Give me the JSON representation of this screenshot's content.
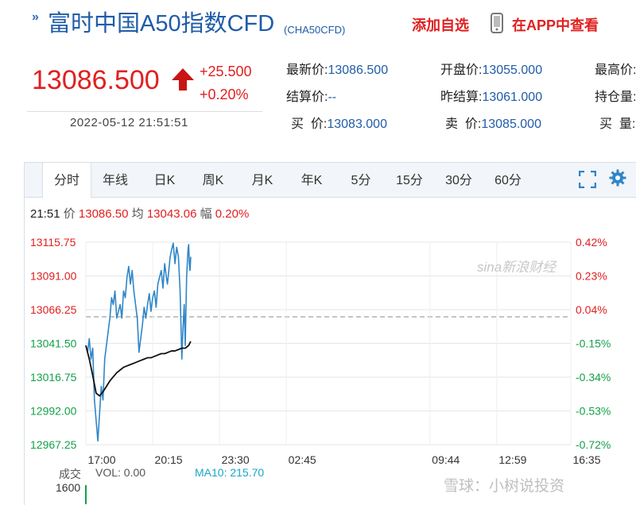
{
  "header": {
    "chevron": "»",
    "title": "富时中国A50指数CFD",
    "code": "(CHA50CFD)",
    "add_favorite": "添加自选",
    "view_in_app": "在APP中查看"
  },
  "quote": {
    "price": "13086.500",
    "change": "+25.500",
    "change_pct": "+0.20%",
    "timestamp": "2022-05-12 21:51:51",
    "rows": [
      [
        {
          "label": "最新价:",
          "value": "13086.500"
        },
        {
          "label": "开盘价:",
          "value": "13055.000"
        },
        {
          "label": "最高价:",
          "value": ""
        }
      ],
      [
        {
          "label": "结算价:",
          "value": "--"
        },
        {
          "label": "昨结算:",
          "value": "13061.000"
        },
        {
          "label": "持仓量:",
          "value": ""
        }
      ],
      [
        {
          "label": "买  价:",
          "value": "13083.000"
        },
        {
          "label": "卖  价:",
          "value": "13085.000"
        },
        {
          "label": "买  量:",
          "value": ""
        }
      ]
    ]
  },
  "tabs": [
    {
      "label": "分时",
      "active": true
    },
    {
      "label": "年线",
      "active": false
    },
    {
      "label": "日K",
      "active": false
    },
    {
      "label": "周K",
      "active": false
    },
    {
      "label": "月K",
      "active": false
    },
    {
      "label": "年K",
      "active": false
    },
    {
      "label": "5分",
      "active": false
    },
    {
      "label": "15分",
      "active": false
    },
    {
      "label": "30分",
      "active": false
    },
    {
      "label": "60分",
      "active": false
    }
  ],
  "toolbar_icons": [
    "fullscreen-icon",
    "settings-icon"
  ],
  "info": {
    "time": "21:51",
    "price_label": "价",
    "price": "13086.50",
    "avg_label": "均",
    "avg": "13043.06",
    "pct_label": "幅",
    "pct": "0.20%"
  },
  "watermark": "sina新浪财经",
  "bottom_watermark": "雪球：小树说投资",
  "volume": {
    "label": "成交",
    "vol_text": "VOL: 0.00",
    "ma10_text": "MA10: 215.70",
    "max_label": "1600"
  },
  "colors": {
    "up": "#e02020",
    "down": "#15a04a",
    "link": "#1f5ca8",
    "price_line": "#2f86c8",
    "avg_line": "#111111",
    "ma10": "#1aa6c8"
  },
  "chart_data": {
    "type": "line",
    "title": "",
    "y_left_ticks": [
      "13115.75",
      "13091.00",
      "13066.25",
      "13041.50",
      "13016.75",
      "12992.00",
      "12967.25"
    ],
    "y_left_values": [
      13115.75,
      13091.0,
      13066.25,
      13041.5,
      13016.75,
      12992.0,
      12967.25
    ],
    "y_right_ticks": [
      "0.42%",
      "0.23%",
      "0.04%",
      "-0.15%",
      "-0.34%",
      "-0.53%",
      "-0.72%"
    ],
    "x_ticks": [
      "17:00",
      "20:15",
      "23:30",
      "02:45",
      "09:44",
      "12:59",
      "16:35"
    ],
    "x_tick_minutes": [
      0,
      195,
      390,
      585,
      1004,
      1199,
      1415
    ],
    "ylim": [
      12967.25,
      13115.75
    ],
    "xlim_minutes": [
      0,
      1415
    ],
    "reference": 13061.0,
    "grid": true,
    "series": [
      {
        "color_key": "price_line",
        "x_minutes": [
          0,
          5,
          10,
          15,
          20,
          25,
          30,
          35,
          40,
          45,
          50,
          55,
          60,
          65,
          70,
          75,
          80,
          85,
          90,
          95,
          100,
          105,
          110,
          115,
          120,
          125,
          130,
          135,
          140,
          145,
          150,
          155,
          160,
          165,
          170,
          175,
          180,
          185,
          190,
          195,
          200,
          205,
          210,
          215,
          220,
          225,
          230,
          235,
          238,
          242,
          246,
          250,
          255,
          260,
          265,
          270,
          275,
          280,
          283,
          287,
          290,
          292,
          294,
          296,
          298,
          300,
          302,
          304,
          306
        ],
        "values": [
          13040,
          13035,
          13045,
          13030,
          13038,
          13000,
          12985,
          12970,
          12990,
          13010,
          13000,
          13030,
          13040,
          13050,
          13060,
          13075,
          13070,
          13080,
          13060,
          13065,
          13070,
          13060,
          13080,
          13075,
          13090,
          13098,
          13085,
          13095,
          13080,
          13070,
          13060,
          13035,
          13045,
          13055,
          13068,
          13060,
          13070,
          13078,
          13065,
          13075,
          13080,
          13068,
          13085,
          13090,
          13095,
          13082,
          13100,
          13090,
          13085,
          13095,
          13105,
          13110,
          13115,
          13100,
          13112,
          13105,
          13080,
          13030,
          13050,
          13070,
          13040,
          13065,
          13090,
          13100,
          13110,
          13114,
          13100,
          13095,
          13105
        ]
      },
      {
        "color_key": "avg_line",
        "x_minutes": [
          0,
          10,
          20,
          30,
          40,
          50,
          60,
          70,
          80,
          90,
          100,
          110,
          120,
          130,
          140,
          150,
          160,
          170,
          180,
          190,
          200,
          210,
          220,
          230,
          240,
          250,
          260,
          270,
          280,
          290,
          300,
          306
        ],
        "values": [
          13040,
          13030,
          13018,
          13005,
          13003,
          13006,
          13010,
          13014,
          13017,
          13020,
          13022,
          13024,
          13025,
          13026,
          13027,
          13028,
          13029,
          13030,
          13031,
          13031,
          13032,
          13033,
          13034,
          13034,
          13035,
          13036,
          13036,
          13037,
          13038,
          13038,
          13040,
          13043
        ]
      }
    ]
  }
}
